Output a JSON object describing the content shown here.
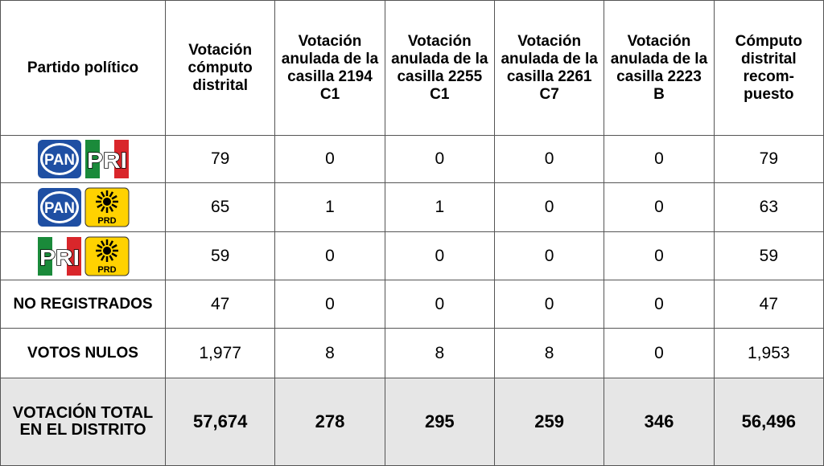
{
  "table": {
    "headers": [
      "Partido político",
      "Votación cómputo distrital",
      "Votación anulada de la casilla 2194 C1",
      "Votación anulada de la casilla 2255 C1",
      "Votación anulada de la casilla 2261 C7",
      "Votación anulada de la casilla 2223 B",
      "Cómputo distrital recom-puesto"
    ],
    "rows": [
      {
        "party": [
          "PAN",
          "PRI"
        ],
        "cells": [
          "79",
          "0",
          "0",
          "0",
          "0",
          "79"
        ]
      },
      {
        "party": [
          "PAN",
          "PRD"
        ],
        "cells": [
          "65",
          "1",
          "1",
          "0",
          "0",
          "63"
        ]
      },
      {
        "party": [
          "PRI",
          "PRD"
        ],
        "cells": [
          "59",
          "0",
          "0",
          "0",
          "0",
          "59"
        ]
      },
      {
        "party": "NO REGISTRADOS",
        "cells": [
          "47",
          "0",
          "0",
          "0",
          "0",
          "47"
        ]
      },
      {
        "party": "VOTOS NULOS",
        "cells": [
          "1,977",
          "8",
          "8",
          "8",
          "0",
          "1,953"
        ]
      },
      {
        "party": "VOTACIÓN TOTAL EN EL DISTRITO",
        "cells": [
          "57,674",
          "278",
          "295",
          "259",
          "346",
          "56,496"
        ],
        "total": true
      }
    ]
  }
}
